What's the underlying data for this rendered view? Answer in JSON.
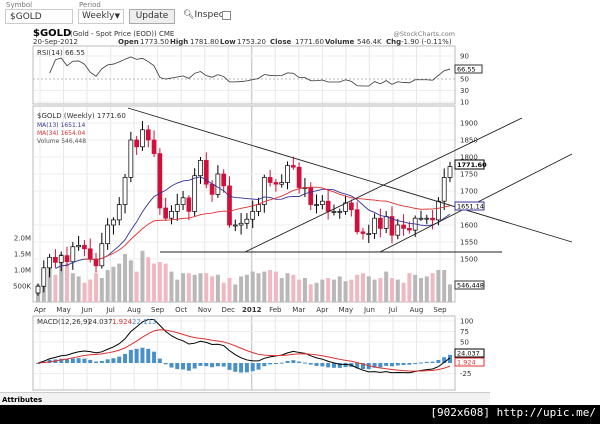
{
  "toolbar": {
    "symbol_label": "Symbol",
    "symbol_value": "$GOLD",
    "period_label": "Period",
    "period_value": "Weekly",
    "update_label": "Update",
    "inspect_label": "Inspect"
  },
  "header": {
    "title": "$GOLD",
    "subtitle": "(Gold - Spot Price (EOD)) CME",
    "date": "20-Sep-2012",
    "open_label": "Open",
    "open": "1773.50",
    "high_label": "High",
    "high": "1781.80",
    "low_label": "Low",
    "low": "1753.20",
    "close_label": "Close",
    "close": "1771.60",
    "volume_label": "Volume",
    "volume": "546.4K",
    "chg_label": "Chg",
    "chg": "-1.90 (-0.11%)",
    "watermark": "@StockCharts.com"
  },
  "rsi": {
    "legend": "RSI(14) 66.55",
    "value_label": "66.55",
    "ticks": [
      "90",
      "50",
      "30",
      "10"
    ]
  },
  "price": {
    "legend": "$GOLD (Weekly) 1771.60",
    "ma13": "MA(13) 1651.14",
    "ma34": "MA(34) 1654.04",
    "volume": "Volume 546,448",
    "last_label": "1771.60",
    "ma_label": "1651.14",
    "ticks": [
      "1900",
      "1850",
      "1800",
      "1750",
      "1700",
      "1600",
      "1550",
      "1500"
    ],
    "vol_ticks": [
      "2.0M",
      "1.5M",
      "1.0M",
      "500K"
    ],
    "vol_last": "546,448"
  },
  "xaxis": [
    "Apr",
    "May",
    "Jun",
    "Jul",
    "Aug",
    "Sep",
    "Oct",
    "Nov",
    "Dec",
    "2012",
    "Feb",
    "Mar",
    "Apr",
    "May",
    "Jun",
    "Jul",
    "Aug",
    "Sep"
  ],
  "macd": {
    "legend_name": "MACD(12,26,9)",
    "v1": "24.037",
    "v2": "1.924",
    "v3": "22.113",
    "label1": "24.037",
    "label2": "1.924",
    "ticks": [
      "100",
      "75",
      "50",
      "-25"
    ]
  },
  "colors": {
    "up": "#ffffff",
    "down": "#d0103a",
    "ma13": "#333399",
    "ma34": "#e03030",
    "hist": "#4a90c8"
  },
  "footer": {
    "attributes": "Attributes",
    "watermark": "[902x608] http://upic.me/"
  },
  "chart_data": {
    "type": "candlestick",
    "period": "weekly",
    "closes": [
      1420,
      1474,
      1505,
      1490,
      1510,
      1492,
      1536,
      1540,
      1530,
      1500,
      1480,
      1545,
      1600,
      1615,
      1660,
      1740,
      1850,
      1830,
      1880,
      1850,
      1810,
      1650,
      1620,
      1640,
      1660,
      1680,
      1640,
      1745,
      1790,
      1720,
      1690,
      1750,
      1715,
      1600,
      1600,
      1605,
      1617,
      1640,
      1660,
      1740,
      1725,
      1720,
      1725,
      1775,
      1770,
      1710,
      1710,
      1660,
      1660,
      1670,
      1640,
      1640,
      1640,
      1665,
      1645,
      1580,
      1575,
      1575,
      1620,
      1590,
      1625,
      1570,
      1600,
      1590,
      1585,
      1620,
      1620,
      1620,
      1615,
      1670,
      1740,
      1771.6
    ],
    "volumes": [
      0.55,
      0.8,
      1.1,
      0.85,
      1.5,
      1.2,
      0.9,
      0.8,
      0.6,
      0.7,
      0.9,
      0.75,
      1.0,
      1.1,
      1.2,
      1.5,
      1.3,
      0.95,
      1.6,
      1.4,
      1.2,
      1.25,
      1.2,
      0.95,
      0.7,
      0.9,
      0.9,
      0.85,
      0.9,
      0.9,
      0.8,
      0.85,
      0.6,
      0.75,
      0.55,
      0.8,
      0.85,
      0.95,
      0.9,
      0.95,
      1.0,
      0.95,
      0.75,
      0.9,
      0.85,
      0.7,
      0.75,
      0.55,
      0.6,
      0.7,
      0.75,
      0.7,
      0.8,
      0.65,
      0.7,
      0.85,
      0.9,
      0.8,
      0.7,
      0.75,
      0.95,
      0.75,
      0.7,
      0.6,
      0.9,
      0.85,
      0.75,
      0.8,
      0.9,
      1.0,
      1.0,
      0.55
    ],
    "price_range": [
      1500,
      1920
    ],
    "volume_unit": "M"
  }
}
